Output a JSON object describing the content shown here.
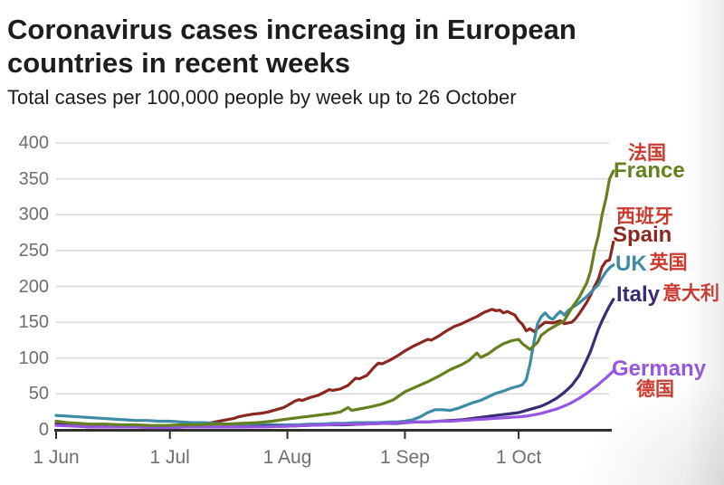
{
  "page": {
    "background": "#ffffff"
  },
  "header": {
    "title": "Coronavirus cases increasing in European countries in recent weeks",
    "subtitle": "Total cases per 100,000 people by week up to 26 October"
  },
  "colors": {
    "title_text": "#1d1d1b",
    "axis_label_gray": "#6e6e73",
    "gridline": "#d8d8d8",
    "axis_line": "#2f2f2f",
    "translation_red": "#cb3a2d",
    "background": "#ffffff"
  },
  "chart_data": {
    "type": "line",
    "title": "Coronavirus cases increasing in European countries in recent weeks",
    "subtitle": "Total cases per 100,000 people by week up to 26 October",
    "xlabel": "",
    "ylabel": "",
    "x_unit": "days since 1 Jun",
    "xlim": [
      0,
      147
    ],
    "ylim": [
      0,
      400
    ],
    "grid": true,
    "legend_position": "right-of-line-ends",
    "y_ticks": [
      0,
      50,
      100,
      150,
      200,
      250,
      300,
      350,
      400
    ],
    "x_ticks": [
      {
        "label": "1 Jun",
        "day": 0
      },
      {
        "label": "1 Jul",
        "day": 30
      },
      {
        "label": "1 Aug",
        "day": 61
      },
      {
        "label": "1 Sep",
        "day": 92
      },
      {
        "label": "1 Oct",
        "day": 122
      }
    ],
    "draw_order": [
      "Spain",
      "UK",
      "Italy",
      "Germany",
      "France"
    ],
    "series": [
      {
        "name": "France",
        "name_zh": "法国",
        "color": "#66801f",
        "end_value": 361,
        "points": [
          [
            0,
            12
          ],
          [
            3,
            10
          ],
          [
            6,
            9
          ],
          [
            9,
            8
          ],
          [
            13,
            8
          ],
          [
            17,
            7
          ],
          [
            21,
            7
          ],
          [
            25,
            6
          ],
          [
            29,
            6
          ],
          [
            33,
            7
          ],
          [
            37,
            7
          ],
          [
            41,
            8
          ],
          [
            45,
            8
          ],
          [
            49,
            9
          ],
          [
            53,
            10
          ],
          [
            57,
            12
          ],
          [
            61,
            15
          ],
          [
            64,
            17
          ],
          [
            67,
            19
          ],
          [
            70,
            21
          ],
          [
            73,
            23
          ],
          [
            75,
            25
          ],
          [
            77,
            31
          ],
          [
            78,
            27
          ],
          [
            80,
            29
          ],
          [
            83,
            32
          ],
          [
            86,
            36
          ],
          [
            89,
            42
          ],
          [
            92,
            53
          ],
          [
            95,
            60
          ],
          [
            98,
            67
          ],
          [
            101,
            75
          ],
          [
            104,
            84
          ],
          [
            107,
            91
          ],
          [
            109,
            97
          ],
          [
            111,
            107
          ],
          [
            112,
            101
          ],
          [
            114,
            106
          ],
          [
            116,
            114
          ],
          [
            118,
            120
          ],
          [
            120,
            124
          ],
          [
            122,
            126
          ],
          [
            123,
            120
          ],
          [
            125,
            112
          ],
          [
            127,
            122
          ],
          [
            128,
            132
          ],
          [
            130,
            140
          ],
          [
            132,
            146
          ],
          [
            134,
            152
          ],
          [
            136,
            170
          ],
          [
            138,
            185
          ],
          [
            140,
            205
          ],
          [
            141,
            222
          ],
          [
            142,
            250
          ],
          [
            143,
            270
          ],
          [
            144,
            300
          ],
          [
            145,
            322
          ],
          [
            146,
            350
          ],
          [
            147,
            361
          ]
        ]
      },
      {
        "name": "Spain",
        "name_zh": "西班牙",
        "color": "#8c2820",
        "end_value": 262,
        "points": [
          [
            0,
            9
          ],
          [
            1,
            10
          ],
          [
            3,
            8
          ],
          [
            5,
            6
          ],
          [
            8,
            4
          ],
          [
            12,
            4
          ],
          [
            16,
            4
          ],
          [
            20,
            4
          ],
          [
            24,
            4
          ],
          [
            28,
            4
          ],
          [
            31,
            4
          ],
          [
            34,
            5
          ],
          [
            37,
            7
          ],
          [
            40,
            9
          ],
          [
            43,
            12
          ],
          [
            45,
            14
          ],
          [
            47,
            16
          ],
          [
            48,
            18
          ],
          [
            50,
            20
          ],
          [
            52,
            22
          ],
          [
            54,
            23
          ],
          [
            56,
            25
          ],
          [
            58,
            28
          ],
          [
            60,
            31
          ],
          [
            61,
            34
          ],
          [
            63,
            40
          ],
          [
            64,
            42
          ],
          [
            65,
            41
          ],
          [
            67,
            45
          ],
          [
            69,
            48
          ],
          [
            71,
            53
          ],
          [
            72,
            56
          ],
          [
            73,
            55
          ],
          [
            75,
            57
          ],
          [
            77,
            62
          ],
          [
            78,
            67
          ],
          [
            79,
            72
          ],
          [
            80,
            71
          ],
          [
            82,
            76
          ],
          [
            83,
            82
          ],
          [
            84,
            88
          ],
          [
            85,
            93
          ],
          [
            86,
            92
          ],
          [
            88,
            97
          ],
          [
            90,
            103
          ],
          [
            92,
            110
          ],
          [
            94,
            116
          ],
          [
            96,
            121
          ],
          [
            98,
            126
          ],
          [
            99,
            125
          ],
          [
            101,
            131
          ],
          [
            103,
            138
          ],
          [
            105,
            144
          ],
          [
            107,
            148
          ],
          [
            109,
            153
          ],
          [
            111,
            158
          ],
          [
            113,
            164
          ],
          [
            115,
            168
          ],
          [
            116,
            166
          ],
          [
            117,
            167
          ],
          [
            118,
            163
          ],
          [
            119,
            165
          ],
          [
            121,
            160
          ],
          [
            122,
            152
          ],
          [
            123,
            147
          ],
          [
            124,
            138
          ],
          [
            125,
            141
          ],
          [
            126,
            137
          ],
          [
            128,
            146
          ],
          [
            129,
            150
          ],
          [
            131,
            149
          ],
          [
            133,
            152
          ],
          [
            134,
            148
          ],
          [
            136,
            150
          ],
          [
            137,
            155
          ],
          [
            138,
            162
          ],
          [
            139,
            170
          ],
          [
            140,
            178
          ],
          [
            141,
            188
          ],
          [
            142,
            200
          ],
          [
            143,
            210
          ],
          [
            144,
            227
          ],
          [
            145,
            235
          ],
          [
            146,
            237
          ],
          [
            147,
            262
          ]
        ]
      },
      {
        "name": "UK",
        "name_zh": "英国",
        "color": "#3d8ca6",
        "end_value": 230,
        "points": [
          [
            0,
            20
          ],
          [
            3,
            19
          ],
          [
            6,
            18
          ],
          [
            9,
            17
          ],
          [
            12,
            16
          ],
          [
            15,
            15
          ],
          [
            18,
            14
          ],
          [
            21,
            13
          ],
          [
            24,
            13
          ],
          [
            27,
            12
          ],
          [
            30,
            12
          ],
          [
            33,
            11
          ],
          [
            36,
            10
          ],
          [
            39,
            10
          ],
          [
            42,
            9
          ],
          [
            45,
            8
          ],
          [
            48,
            8
          ],
          [
            51,
            7
          ],
          [
            54,
            7
          ],
          [
            57,
            7
          ],
          [
            61,
            7
          ],
          [
            64,
            7
          ],
          [
            67,
            8
          ],
          [
            70,
            8
          ],
          [
            73,
            9
          ],
          [
            76,
            9
          ],
          [
            79,
            10
          ],
          [
            82,
            10
          ],
          [
            85,
            10
          ],
          [
            88,
            11
          ],
          [
            90,
            11
          ],
          [
            92,
            12
          ],
          [
            94,
            14
          ],
          [
            96,
            18
          ],
          [
            98,
            24
          ],
          [
            100,
            28
          ],
          [
            102,
            28
          ],
          [
            104,
            27
          ],
          [
            106,
            30
          ],
          [
            108,
            34
          ],
          [
            110,
            38
          ],
          [
            112,
            41
          ],
          [
            114,
            46
          ],
          [
            116,
            51
          ],
          [
            118,
            54
          ],
          [
            120,
            58
          ],
          [
            122,
            61
          ],
          [
            123,
            63
          ],
          [
            124,
            70
          ],
          [
            125,
            92
          ],
          [
            126,
            122
          ],
          [
            127,
            148
          ],
          [
            128,
            158
          ],
          [
            129,
            163
          ],
          [
            130,
            157
          ],
          [
            131,
            154
          ],
          [
            132,
            160
          ],
          [
            133,
            165
          ],
          [
            134,
            160
          ],
          [
            135,
            166
          ],
          [
            136,
            170
          ],
          [
            138,
            177
          ],
          [
            140,
            186
          ],
          [
            142,
            197
          ],
          [
            143,
            202
          ],
          [
            144,
            212
          ],
          [
            145,
            220
          ],
          [
            146,
            226
          ],
          [
            147,
            230
          ]
        ]
      },
      {
        "name": "Italy",
        "name_zh": "意大利",
        "color": "#3b2a75",
        "end_value": 182,
        "points": [
          [
            0,
            7
          ],
          [
            5,
            6
          ],
          [
            10,
            5
          ],
          [
            15,
            5
          ],
          [
            20,
            4
          ],
          [
            25,
            4
          ],
          [
            30,
            4
          ],
          [
            35,
            4
          ],
          [
            40,
            4
          ],
          [
            45,
            4
          ],
          [
            50,
            4
          ],
          [
            55,
            5
          ],
          [
            61,
            5
          ],
          [
            66,
            6
          ],
          [
            71,
            7
          ],
          [
            76,
            7
          ],
          [
            81,
            8
          ],
          [
            86,
            9
          ],
          [
            90,
            9
          ],
          [
            92,
            10
          ],
          [
            95,
            11
          ],
          [
            98,
            11
          ],
          [
            101,
            12
          ],
          [
            104,
            13
          ],
          [
            107,
            14
          ],
          [
            110,
            16
          ],
          [
            113,
            18
          ],
          [
            116,
            20
          ],
          [
            119,
            22
          ],
          [
            122,
            24
          ],
          [
            124,
            27
          ],
          [
            126,
            30
          ],
          [
            128,
            33
          ],
          [
            130,
            38
          ],
          [
            132,
            44
          ],
          [
            134,
            52
          ],
          [
            136,
            62
          ],
          [
            138,
            76
          ],
          [
            140,
            98
          ],
          [
            141,
            110
          ],
          [
            142,
            125
          ],
          [
            143,
            140
          ],
          [
            144,
            152
          ],
          [
            145,
            163
          ],
          [
            146,
            173
          ],
          [
            147,
            182
          ]
        ]
      },
      {
        "name": "Germany",
        "name_zh": "德国",
        "color": "#9655e2",
        "end_value": 82,
        "points": [
          [
            0,
            6
          ],
          [
            5,
            5
          ],
          [
            10,
            4
          ],
          [
            15,
            4
          ],
          [
            20,
            4
          ],
          [
            25,
            3
          ],
          [
            30,
            3
          ],
          [
            35,
            4
          ],
          [
            40,
            4
          ],
          [
            45,
            4
          ],
          [
            50,
            4
          ],
          [
            55,
            4
          ],
          [
            61,
            5
          ],
          [
            66,
            6
          ],
          [
            71,
            7
          ],
          [
            76,
            8
          ],
          [
            81,
            8
          ],
          [
            86,
            9
          ],
          [
            90,
            10
          ],
          [
            92,
            10
          ],
          [
            95,
            11
          ],
          [
            98,
            11
          ],
          [
            101,
            12
          ],
          [
            104,
            12
          ],
          [
            107,
            13
          ],
          [
            110,
            14
          ],
          [
            113,
            15
          ],
          [
            116,
            16
          ],
          [
            119,
            17
          ],
          [
            122,
            18
          ],
          [
            124,
            19
          ],
          [
            126,
            21
          ],
          [
            128,
            23
          ],
          [
            130,
            26
          ],
          [
            132,
            29
          ],
          [
            134,
            33
          ],
          [
            136,
            38
          ],
          [
            138,
            44
          ],
          [
            140,
            51
          ],
          [
            142,
            59
          ],
          [
            143,
            63
          ],
          [
            144,
            68
          ],
          [
            145,
            72
          ],
          [
            146,
            77
          ],
          [
            147,
            82
          ]
        ]
      }
    ]
  }
}
